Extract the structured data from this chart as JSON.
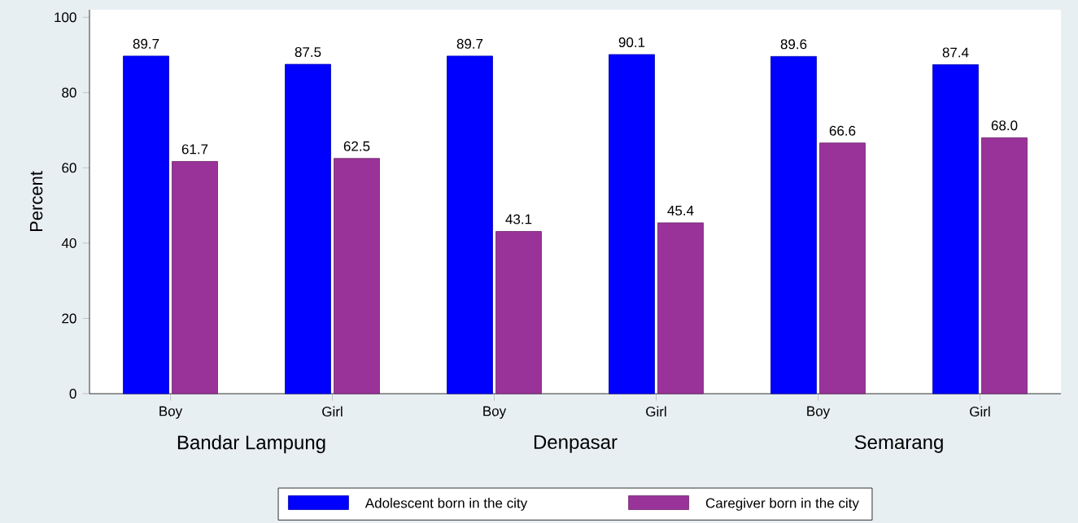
{
  "chart_data": {
    "type": "bar",
    "ylabel": "Percent",
    "categories": [
      "Boy",
      "Girl",
      "Boy",
      "Girl",
      "Boy",
      "Girl"
    ],
    "series": [
      {
        "name": "Adolescent born in the city",
        "color": "#0000ff",
        "values": [
          89.7,
          87.5,
          89.7,
          90.1,
          89.6,
          87.4
        ],
        "value_labels": [
          "89.7",
          "87.5",
          "89.7",
          "90.1",
          "89.6",
          "87.4"
        ]
      },
      {
        "name": "Caregiver born in the city",
        "color": "#993399",
        "values": [
          61.7,
          62.5,
          43.1,
          45.4,
          66.6,
          68.0
        ],
        "value_labels": [
          "61.7",
          "62.5",
          "43.1",
          "45.4",
          "66.6",
          "68.0"
        ]
      }
    ],
    "annotations": [
      "Bandar Lampung",
      "Denpasar",
      "Semarang"
    ],
    "ylim": [
      0,
      102
    ],
    "yticks": [
      0,
      20,
      40,
      60,
      80,
      100
    ],
    "grid": false,
    "legend": "bottom"
  }
}
